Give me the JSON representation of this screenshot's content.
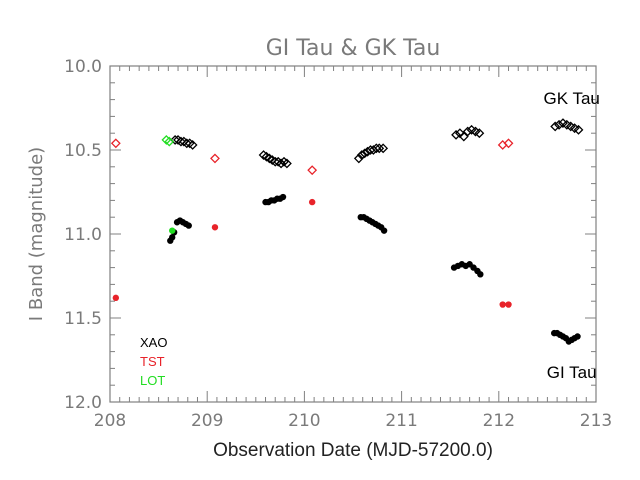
{
  "chart_data": {
    "type": "scatter",
    "title": "GI Tau & GK Tau",
    "xlabel": "Observation Date (MJD-57200.0)",
    "ylabel": "I Band (magnitude)",
    "xlim": [
      208,
      213
    ],
    "ylim": [
      12.0,
      10.0
    ],
    "y_inverted": true,
    "x_ticks": [
      "208",
      "209",
      "210",
      "211",
      "212",
      "213"
    ],
    "y_ticks": [
      "10.0",
      "10.5",
      "11.0",
      "11.5",
      "12.0"
    ],
    "grid": false,
    "legend": [
      {
        "label": "XAO",
        "color": "#000000"
      },
      {
        "label": "TST",
        "color": "#e8232a"
      },
      {
        "label": "LOT",
        "color": "#22dd22"
      }
    ],
    "annotations": [
      {
        "text": "GK Tau",
        "x": 212.75,
        "y": 10.19
      },
      {
        "text": "GI Tau",
        "x": 212.75,
        "y": 11.82
      }
    ],
    "series": [
      {
        "name": "GK Tau XAO",
        "telescope": "XAO",
        "marker": "diamond-open",
        "color": "#000000",
        "x": [
          208.67,
          208.7,
          208.73,
          208.76,
          208.79,
          208.82,
          208.85,
          209.58,
          209.61,
          209.64,
          209.67,
          209.7,
          209.73,
          209.76,
          209.79,
          209.82,
          210.56,
          210.59,
          210.62,
          210.65,
          210.68,
          210.71,
          210.74,
          210.77,
          210.81,
          211.56,
          211.6,
          211.64,
          211.68,
          211.72,
          211.76,
          211.8,
          212.58,
          212.62,
          212.66,
          212.7,
          212.74,
          212.78,
          212.82
        ],
        "y": [
          10.44,
          10.44,
          10.45,
          10.45,
          10.46,
          10.46,
          10.47,
          10.53,
          10.54,
          10.55,
          10.56,
          10.57,
          10.57,
          10.58,
          10.57,
          10.58,
          10.55,
          10.53,
          10.52,
          10.51,
          10.5,
          10.5,
          10.49,
          10.49,
          10.49,
          10.41,
          10.4,
          10.42,
          10.39,
          10.38,
          10.39,
          10.4,
          10.36,
          10.35,
          10.34,
          10.35,
          10.36,
          10.37,
          10.38
        ]
      },
      {
        "name": "GI Tau XAO",
        "telescope": "XAO",
        "marker": "circle-filled",
        "color": "#000000",
        "x": [
          208.62,
          208.64,
          208.66,
          208.69,
          208.72,
          208.75,
          208.78,
          208.81,
          209.6,
          209.63,
          209.66,
          209.69,
          209.72,
          209.75,
          209.78,
          210.58,
          210.61,
          210.64,
          210.67,
          210.7,
          210.73,
          210.76,
          210.79,
          210.82,
          211.54,
          211.58,
          211.62,
          211.66,
          211.7,
          211.74,
          211.78,
          211.81,
          212.57,
          212.6,
          212.63,
          212.66,
          212.69,
          212.72,
          212.75,
          212.78,
          212.81
        ],
        "y": [
          11.04,
          11.02,
          10.99,
          10.93,
          10.92,
          10.93,
          10.94,
          10.95,
          10.81,
          10.81,
          10.8,
          10.8,
          10.79,
          10.79,
          10.78,
          10.9,
          10.9,
          10.91,
          10.92,
          10.93,
          10.94,
          10.95,
          10.96,
          10.98,
          11.2,
          11.19,
          11.18,
          11.19,
          11.18,
          11.2,
          11.22,
          11.24,
          11.59,
          11.59,
          11.6,
          11.61,
          11.62,
          11.64,
          11.63,
          11.62,
          11.61
        ]
      },
      {
        "name": "GK Tau TST",
        "telescope": "TST",
        "marker": "diamond-open",
        "color": "#e8232a",
        "x": [
          208.06,
          209.08,
          210.08,
          212.04,
          212.1
        ],
        "y": [
          10.46,
          10.55,
          10.62,
          10.47,
          10.46
        ]
      },
      {
        "name": "GI Tau TST",
        "telescope": "TST",
        "marker": "circle-filled",
        "color": "#e8232a",
        "x": [
          208.06,
          209.08,
          210.08,
          212.04,
          212.1
        ],
        "y": [
          11.38,
          10.96,
          10.81,
          11.42,
          11.42
        ]
      },
      {
        "name": "GK Tau LOT",
        "telescope": "LOT",
        "marker": "diamond-open",
        "color": "#22dd22",
        "x": [
          208.58,
          208.61
        ],
        "y": [
          10.44,
          10.45
        ]
      },
      {
        "name": "GI Tau LOT",
        "telescope": "LOT",
        "marker": "circle-filled",
        "color": "#22dd22",
        "x": [
          208.64
        ],
        "y": [
          10.98
        ]
      }
    ]
  }
}
